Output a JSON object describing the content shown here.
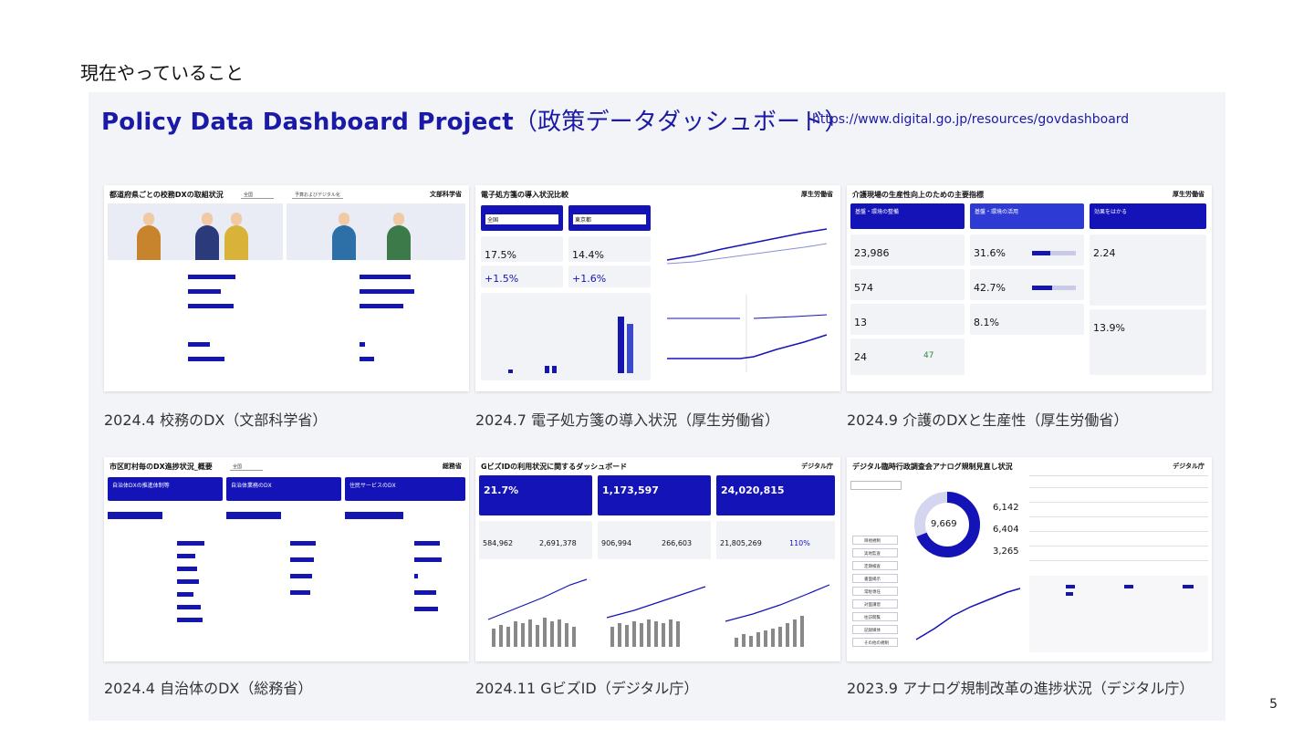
{
  "slide": {
    "heading": "現在やっていること",
    "page_number": "5"
  },
  "panel": {
    "title_en": "Policy Data Dashboard Project",
    "title_jp": "（政策データダッシュボード）",
    "url": "https://www.digital.go.jp/resources/govdashboard"
  },
  "thumbnails": [
    {
      "caption": "2024.4 校務のDX（文部科学省）",
      "title": "都道府県ごとの校務DXの取組状況",
      "logo": "文部科学省",
      "select": "全国",
      "select2": "予算およびデジタル化"
    },
    {
      "caption": "2024.7 電子処方箋の導入状況（厚生労働省）",
      "title": "電子処方箋の導入状況比較",
      "logo": "厚生労働省",
      "region_a": "全国",
      "region_b": "東京都",
      "rate_a": "17.5%",
      "rate_b": "14.4%",
      "delta_a": "+1.5%",
      "delta_b": "+1.6%"
    },
    {
      "caption": "2024.9 介護のDXと生産性（厚生労働省）",
      "title": "介護現場の生産性向上のための主要指標",
      "logo": "厚生労働省",
      "steps": [
        "基盤・環境の整備",
        "基盤・環境の活用",
        "効果をはかる"
      ],
      "values": [
        "23,986",
        "574",
        "13",
        "24",
        "31.6%",
        "42.7%",
        "8.1%",
        "2.24",
        "13.9%",
        "47"
      ]
    },
    {
      "caption": "2024.4 自治体のDX（総務省）",
      "title": "市区町村毎のDX進捗状況_概要",
      "logo": "総務省",
      "select": "全国",
      "tabs": [
        "自治体DXの推進体制等",
        "自治体業務のDX",
        "住民サービスのDX"
      ]
    },
    {
      "caption": "2024.11 GビズID（デジタル庁）",
      "title": "GビズIDの利用状況に関するダッシュボード",
      "logo": "デジタル庁",
      "kpis": [
        "21.7%",
        "1,173,597",
        "24,020,815"
      ],
      "subs": [
        "584,962",
        "2,691,378",
        "906,994",
        "266,603",
        "21,805,269",
        "110%"
      ]
    },
    {
      "caption": "2023.9 アナログ規制改革の進捗状況（デジタル庁）",
      "title": "デジタル臨時行政調査会アナログ規制見直し状況",
      "logo": "デジタル庁",
      "donut_total": "9,669",
      "counts": [
        "6,142",
        "6,404",
        "3,265"
      ],
      "menu": [
        "目視規制",
        "実地監査",
        "定期検査",
        "書面掲示",
        "常駐専任",
        "対面講習",
        "往訪閲覧",
        "記録媒体",
        "その他の規制"
      ]
    }
  ],
  "colors": {
    "accent": "#1313b8",
    "panel_bg": "#f3f4f8"
  }
}
